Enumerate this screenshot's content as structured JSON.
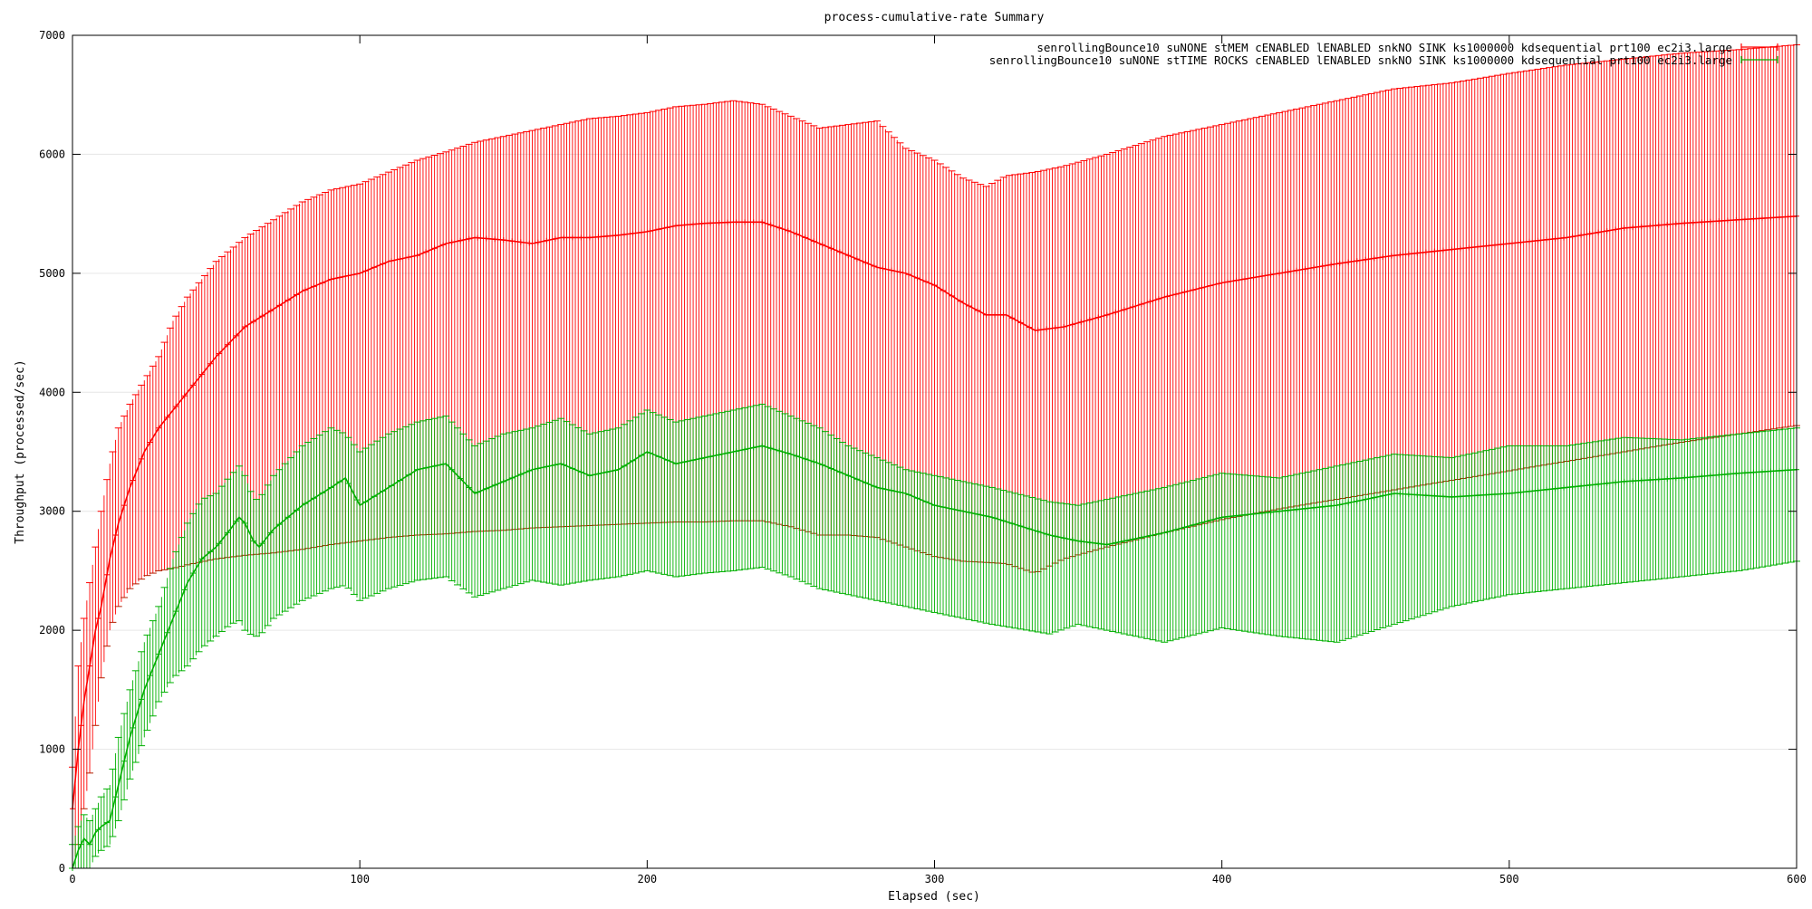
{
  "chart_data": {
    "type": "line",
    "title": "process-cumulative-rate Summary",
    "xlabel": "Elapsed (sec)",
    "ylabel": "Throughput (processed/sec)",
    "xlim": [
      0,
      600
    ],
    "ylim": [
      0,
      7000
    ],
    "x_ticks": [
      0,
      100,
      200,
      300,
      400,
      500,
      600
    ],
    "y_ticks": [
      0,
      1000,
      2000,
      3000,
      4000,
      5000,
      6000,
      7000
    ],
    "grid": true,
    "legend_position": "top-right",
    "series": [
      {
        "name": "senrollingBounce10 suNONE stMEM cENABLED lENABLED snkNO SINK ks1000000 kdsequential prt100 ec2i3.large",
        "color": "#ff0000",
        "mean_color": "#ff0000",
        "lower_color": "#b02000",
        "x": [
          0,
          2,
          4,
          6,
          8,
          10,
          13,
          16,
          20,
          25,
          30,
          35,
          40,
          50,
          60,
          70,
          80,
          90,
          100,
          110,
          120,
          130,
          140,
          150,
          160,
          170,
          180,
          190,
          200,
          210,
          220,
          230,
          240,
          250,
          260,
          270,
          280,
          290,
          300,
          310,
          318,
          325,
          335,
          345,
          360,
          380,
          400,
          420,
          440,
          460,
          480,
          500,
          520,
          540,
          560,
          580,
          600
        ],
        "mean": [
          500,
          1000,
          1400,
          1700,
          2000,
          2200,
          2600,
          2900,
          3200,
          3500,
          3700,
          3850,
          4000,
          4300,
          4550,
          4700,
          4850,
          4950,
          5000,
          5100,
          5150,
          5250,
          5300,
          5280,
          5250,
          5300,
          5300,
          5320,
          5350,
          5400,
          5420,
          5430,
          5430,
          5350,
          5250,
          5150,
          5050,
          5000,
          4900,
          4750,
          4650,
          4650,
          4520,
          4550,
          4650,
          4800,
          4920,
          5000,
          5080,
          5150,
          5200,
          5250,
          5300,
          5380,
          5420,
          5450,
          5480
        ],
        "upper": [
          850,
          1700,
          2100,
          2400,
          2700,
          3000,
          3400,
          3700,
          3900,
          4100,
          4300,
          4600,
          4800,
          5100,
          5300,
          5450,
          5600,
          5700,
          5750,
          5850,
          5950,
          6020,
          6100,
          6150,
          6200,
          6250,
          6300,
          6320,
          6350,
          6400,
          6420,
          6450,
          6420,
          6320,
          6220,
          6250,
          6280,
          6050,
          5950,
          5800,
          5730,
          5820,
          5850,
          5900,
          6000,
          6150,
          6250,
          6350,
          6450,
          6550,
          6600,
          6680,
          6750,
          6800,
          6850,
          6880,
          6920
        ],
        "lower": [
          0,
          200,
          500,
          800,
          1200,
          1600,
          2000,
          2200,
          2350,
          2450,
          2500,
          2520,
          2550,
          2600,
          2630,
          2650,
          2680,
          2720,
          2750,
          2780,
          2800,
          2810,
          2830,
          2840,
          2860,
          2870,
          2880,
          2890,
          2900,
          2910,
          2910,
          2920,
          2920,
          2870,
          2800,
          2800,
          2780,
          2700,
          2620,
          2580,
          2570,
          2560,
          2480,
          2600,
          2700,
          2820,
          2930,
          3020,
          3100,
          3180,
          3260,
          3340,
          3420,
          3500,
          3580,
          3650,
          3720
        ]
      },
      {
        "name": "senrollingBounce10 suNONE stTIME ROCKS cENABLED lENABLED snkNO SINK ks1000000 kdsequential prt100 ec2i3.large",
        "color": "#00b000",
        "mean_color": "#00b000",
        "lower_color": "#00b000",
        "x": [
          0,
          2,
          4,
          6,
          8,
          10,
          13,
          16,
          20,
          25,
          30,
          35,
          40,
          45,
          50,
          55,
          58,
          60,
          63,
          65,
          70,
          80,
          90,
          95,
          100,
          110,
          120,
          130,
          140,
          150,
          160,
          170,
          180,
          190,
          200,
          210,
          220,
          230,
          240,
          250,
          260,
          270,
          280,
          290,
          300,
          320,
          340,
          350,
          360,
          380,
          400,
          420,
          440,
          460,
          480,
          500,
          520,
          540,
          560,
          580,
          600
        ],
        "mean": [
          0,
          150,
          250,
          200,
          300,
          350,
          400,
          700,
          1100,
          1500,
          1800,
          2100,
          2400,
          2600,
          2700,
          2850,
          2950,
          2900,
          2750,
          2700,
          2850,
          3050,
          3200,
          3280,
          3050,
          3200,
          3350,
          3400,
          3150,
          3250,
          3350,
          3400,
          3300,
          3350,
          3500,
          3400,
          3450,
          3500,
          3550,
          3480,
          3400,
          3300,
          3200,
          3150,
          3050,
          2950,
          2800,
          2750,
          2720,
          2820,
          2950,
          3000,
          3050,
          3150,
          3120,
          3150,
          3200,
          3250,
          3280,
          3320,
          3350
        ],
        "upper": [
          200,
          350,
          450,
          400,
          500,
          600,
          700,
          1100,
          1500,
          1900,
          2200,
          2600,
          2900,
          3100,
          3150,
          3300,
          3380,
          3300,
          3100,
          3100,
          3300,
          3550,
          3700,
          3650,
          3500,
          3650,
          3750,
          3800,
          3550,
          3650,
          3700,
          3780,
          3650,
          3700,
          3850,
          3750,
          3800,
          3850,
          3900,
          3800,
          3700,
          3550,
          3450,
          3350,
          3300,
          3200,
          3080,
          3050,
          3100,
          3200,
          3320,
          3280,
          3380,
          3480,
          3450,
          3550,
          3550,
          3620,
          3600,
          3650,
          3700
        ],
        "lower": [
          0,
          0,
          0,
          0,
          100,
          150,
          200,
          400,
          750,
          1100,
          1400,
          1600,
          1700,
          1850,
          1950,
          2050,
          2080,
          2000,
          1950,
          1950,
          2100,
          2250,
          2350,
          2380,
          2250,
          2350,
          2420,
          2450,
          2280,
          2350,
          2420,
          2380,
          2420,
          2450,
          2500,
          2450,
          2480,
          2500,
          2530,
          2450,
          2350,
          2300,
          2250,
          2200,
          2150,
          2050,
          1970,
          2050,
          2000,
          1900,
          2020,
          1950,
          1900,
          2050,
          2200,
          2300,
          2350,
          2400,
          2450,
          2500,
          2580
        ]
      }
    ]
  }
}
